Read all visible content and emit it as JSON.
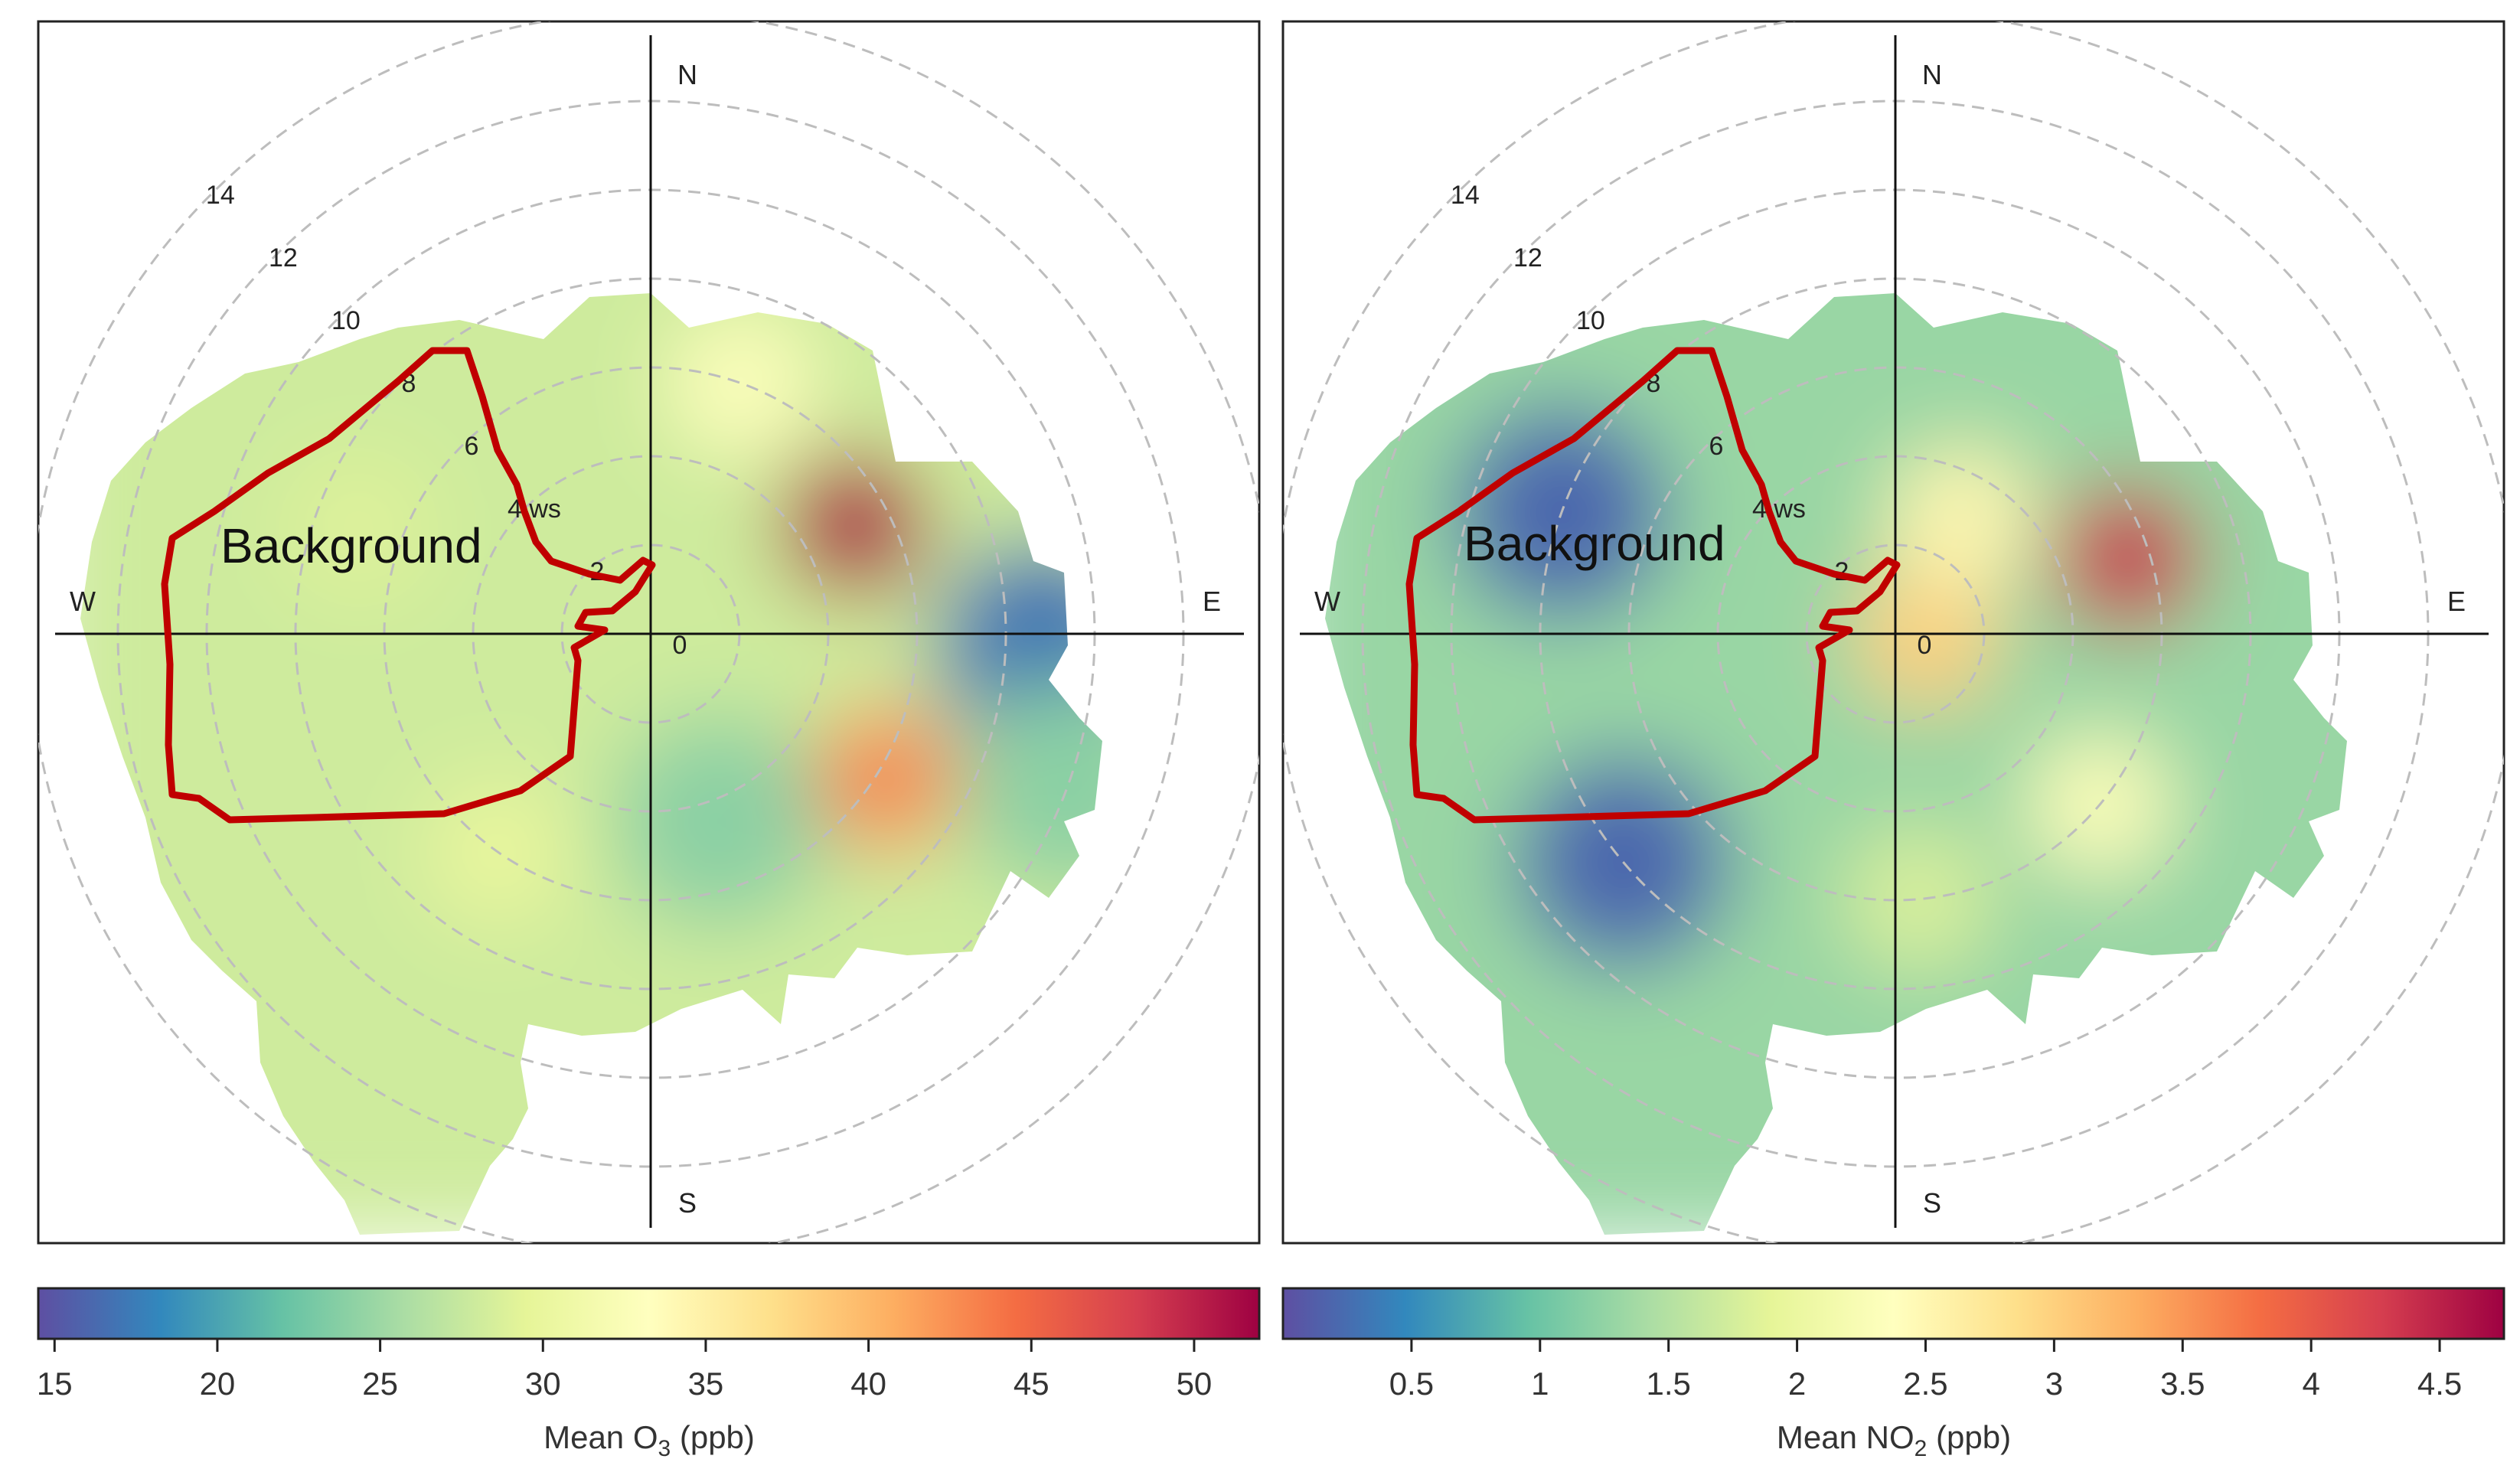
{
  "chart_data": [
    {
      "type": "heatmap",
      "subtype": "polar-plot",
      "legend_title": "Mean O",
      "legend_subscript": "3",
      "legend_units": " (ppb)",
      "colorbar_ticks": [
        15,
        20,
        25,
        30,
        35,
        40,
        45,
        50
      ],
      "colorbar_range": [
        14.5,
        52
      ],
      "radial_ticks": [
        0,
        2,
        4,
        6,
        8,
        10,
        12,
        14
      ],
      "radial_axis_label": "ws",
      "directions": [
        "N",
        "E",
        "S",
        "W"
      ],
      "annotation": "Background",
      "hotspots": [
        {
          "direction_deg": 62,
          "ws": 5.2,
          "value": 51
        },
        {
          "direction_deg": 122,
          "ws": 6.2,
          "value": 43
        },
        {
          "direction_deg": 20,
          "ws": 6.0,
          "value": 33
        },
        {
          "direction_deg": 92,
          "ws": 8.8,
          "value": 17
        },
        {
          "direction_deg": 110,
          "ws": 10,
          "value": 24
        },
        {
          "direction_deg": 160,
          "ws": 4.5,
          "value": 24
        },
        {
          "direction_deg": 215,
          "ws": 6,
          "value": 30
        },
        {
          "direction_deg": 290,
          "ws": 7,
          "value": 29
        }
      ],
      "base_value": 28
    },
    {
      "type": "heatmap",
      "subtype": "polar-plot",
      "legend_title": "Mean NO",
      "legend_subscript": "2",
      "legend_units": " (ppb)",
      "colorbar_ticks": [
        0.5,
        1,
        1.5,
        2,
        2.5,
        3,
        3.5,
        4,
        4.5
      ],
      "colorbar_range": [
        0,
        4.75
      ],
      "radial_ticks": [
        0,
        2,
        4,
        6,
        8,
        10,
        12,
        14
      ],
      "radial_axis_label": "ws",
      "directions": [
        "N",
        "E",
        "S",
        "W"
      ],
      "annotation": "Background",
      "hotspots": [
        {
          "direction_deg": 72,
          "ws": 5.5,
          "value": 4.4
        },
        {
          "direction_deg": 95,
          "ws": 0.7,
          "value": 3.0
        },
        {
          "direction_deg": 30,
          "ws": 3.0,
          "value": 2.5
        },
        {
          "direction_deg": 130,
          "ws": 6,
          "value": 2.3
        },
        {
          "direction_deg": 175,
          "ws": 6,
          "value": 1.8
        },
        {
          "direction_deg": 230,
          "ws": 8,
          "value": 0.2
        },
        {
          "direction_deg": 290,
          "ws": 8,
          "value": 0.2
        }
      ],
      "base_value": 1.3
    }
  ],
  "colors": {
    "outline": "#c00000",
    "spectral": [
      "#5e4fa2",
      "#3288bd",
      "#66c2a5",
      "#abdda4",
      "#e6f598",
      "#ffffbf",
      "#fee08b",
      "#fdae61",
      "#f46d43",
      "#d53e4f",
      "#9e0142"
    ]
  }
}
